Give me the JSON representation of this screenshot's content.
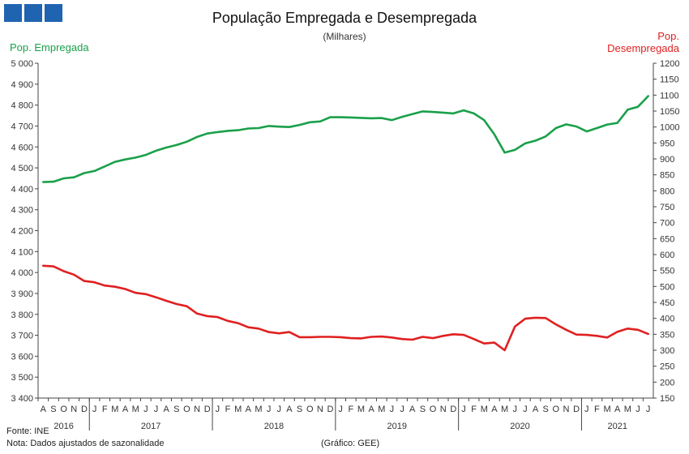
{
  "logo": {
    "color": "#1f64b0"
  },
  "chart_data": {
    "type": "line",
    "title": "População Empregada e Desempregada",
    "subtitle": "(Milhares)",
    "ylabel_left": "Pop. Empregada",
    "ylabel_right": [
      "Pop.",
      "Desempregada"
    ],
    "ylim_left": [
      3400,
      5000
    ],
    "ylim_right": [
      150,
      1200
    ],
    "yticks_left": [
      "3 400",
      "3 500",
      "3 600",
      "3 700",
      "3 800",
      "3 900",
      "4 000",
      "4 100",
      "4 200",
      "4 300",
      "4 400",
      "4 500",
      "4 600",
      "4 700",
      "4 800",
      "4 900",
      "5 000"
    ],
    "yticks_right": [
      "150",
      "200",
      "250",
      "300",
      "350",
      "400",
      "450",
      "500",
      "550",
      "600",
      "650",
      "700",
      "750",
      "800",
      "850",
      "900",
      "950",
      "1000",
      "1050",
      "1100",
      "1150",
      "1200"
    ],
    "months": [
      "A",
      "S",
      "O",
      "N",
      "D",
      "J",
      "F",
      "M",
      "A",
      "M",
      "J",
      "J",
      "A",
      "S",
      "O",
      "N",
      "D",
      "J",
      "F",
      "M",
      "A",
      "M",
      "J",
      "J",
      "A",
      "S",
      "O",
      "N",
      "D",
      "J",
      "F",
      "M",
      "A",
      "M",
      "J",
      "J",
      "A",
      "S",
      "O",
      "N",
      "D",
      "J",
      "F",
      "M",
      "A",
      "M",
      "J",
      "J",
      "A",
      "S",
      "O",
      "N",
      "D",
      "J",
      "F",
      "M",
      "A",
      "M",
      "J",
      "J"
    ],
    "years": [
      {
        "label": "2016",
        "start": 0,
        "end": 5
      },
      {
        "label": "2017",
        "start": 5,
        "end": 17
      },
      {
        "label": "2018",
        "start": 17,
        "end": 29
      },
      {
        "label": "2019",
        "start": 29,
        "end": 41
      },
      {
        "label": "2020",
        "start": 41,
        "end": 53
      },
      {
        "label": "2021",
        "start": 53,
        "end": 60
      }
    ],
    "series": [
      {
        "name": "Pop. Empregada",
        "axis": "left",
        "color": "#1aa04a",
        "values": [
          4432,
          4434,
          4450,
          4455,
          4475,
          4485,
          4507,
          4529,
          4540,
          4549,
          4562,
          4582,
          4597,
          4609,
          4625,
          4648,
          4664,
          4671,
          4677,
          4680,
          4688,
          4690,
          4700,
          4697,
          4695,
          4705,
          4718,
          4722,
          4742,
          4742,
          4741,
          4739,
          4737,
          4738,
          4728,
          4744,
          4757,
          4770,
          4767,
          4764,
          4760,
          4775,
          4760,
          4728,
          4660,
          4573,
          4586,
          4617,
          4630,
          4650,
          4690,
          4708,
          4698,
          4674,
          4690,
          4707,
          4715,
          4778,
          4792,
          4843
        ]
      },
      {
        "name": "Pop. Desempregada",
        "axis": "right",
        "color": "#e02020",
        "values": [
          565,
          563,
          548,
          537,
          517,
          513,
          503,
          499,
          492,
          480,
          476,
          466,
          455,
          445,
          438,
          415,
          407,
          404,
          392,
          385,
          372,
          368,
          357,
          353,
          357,
          341,
          341,
          342,
          342,
          341,
          338,
          337,
          342,
          343,
          340,
          335,
          333,
          342,
          338,
          345,
          350,
          348,
          335,
          321,
          324,
          300,
          374,
          399,
          402,
          401,
          381,
          364,
          349,
          348,
          345,
          340,
          358,
          368,
          364,
          351
        ]
      }
    ]
  },
  "footer": {
    "source": "Fonte: INE",
    "note": "Nota: Dados ajustados de sazonalidade",
    "credit": "(Gráfico: GEE)"
  }
}
